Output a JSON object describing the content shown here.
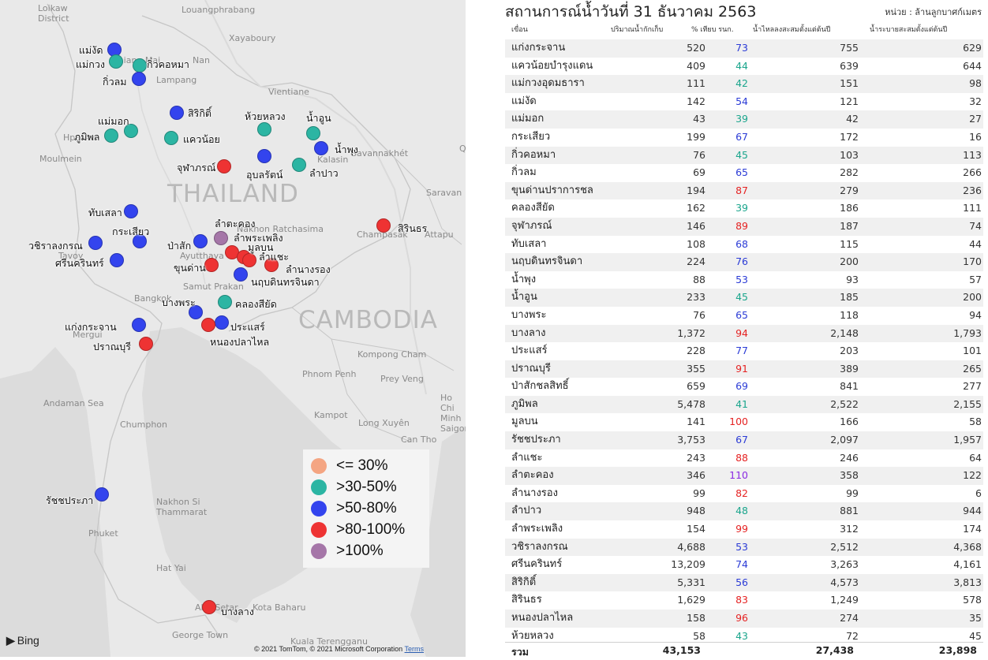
{
  "map": {
    "country_thailand": "THAILAND",
    "country_cambodia": "CAMBODIA",
    "place_labels": [
      "Loikaw District",
      "Louangphrabang",
      "Xayaboury",
      "Vientiane",
      "Hpa-An",
      "Moulmein",
      "Savannakhét",
      "Saravan",
      "Champasak",
      "Attapu",
      "Nakhon Ratchasima",
      "Ayutthaya",
      "Samut Prakan",
      "Bangkok",
      "Mergui",
      "Kompong Cham",
      "Phnom Penh",
      "Prey Veng",
      "Ho Chi Minh Saigon",
      "Kampot",
      "Long Xuyên",
      "Can Tho",
      "Andaman Sea",
      "Chumphon",
      "Nakhon Si Thammarat",
      "Phuket",
      "Hat Yai",
      "Alor Setar",
      "Kota Baharu",
      "George Town",
      "Kuala Terengganu",
      "Tavoy",
      "Chiang Mai",
      "Lampang",
      "Nan",
      "Kalasin",
      "Qui"
    ],
    "dam_labels": [
      "แม่งัด",
      "แม่กวง",
      "กิ่วคอหมา",
      "กิ่วลม",
      "สิริกิติ์",
      "ห้วยหลวง",
      "น้ำอูน",
      "แม่มอก",
      "ภูมิพล",
      "แควน้อย",
      "น้ำพุง",
      "จุฬาภรณ์",
      "อุบลรัตน์",
      "ลำปาว",
      "ทับเสลา",
      "ลำตะคอง",
      "สิรินธร",
      "กระเสียว",
      "วชิราลงกรณ",
      "ป่าสัก",
      "ลำพระเพลิง",
      "มูลบน",
      "ลำแชะ",
      "ศรีนครินทร์",
      "ขุนด่าน",
      "ลำนางรอง",
      "นฤบดินทรจินดา",
      "บางพระ",
      "คลองสียัด",
      "แก่งกระจาน",
      "ประแสร์",
      "หนองปลาไหล",
      "ปราณบุรี",
      "รัชชประภา",
      "บางลาง"
    ],
    "legend": [
      "<= 30%",
      ">30-50%",
      ">50-80%",
      ">80-100%",
      ">100%"
    ],
    "legend_colors": [
      "#f4a582",
      "#2cb5a3",
      "#3344ee",
      "#ee3333",
      "#a576a8"
    ],
    "attribution_logo": "Bing",
    "attribution_text": "© 2021 TomTom, © 2021 Microsoft Corporation",
    "attribution_terms": "Terms"
  },
  "table": {
    "title": "สถานการณ์น้ำวันที่ 31 ธันวาคม 2563",
    "unit": "หน่วย : ล้านลูกบาศก์เมตร",
    "columns": [
      "เขื่อน",
      "ปริมาณน้ำกักเก็บ",
      "% เทียบ รนก.",
      "น้ำไหลลงสะสมตั้งแต่ต้นปี",
      "น้ำระบายสะสมตั้งแต่ต้นปี"
    ],
    "rows": [
      {
        "name": "แก่งกระจาน",
        "storage": "520",
        "pct": "73",
        "pct_color": "#2b3bd6",
        "inflow": "755",
        "outflow": "629"
      },
      {
        "name": "แควน้อยบำรุงแดน",
        "storage": "409",
        "pct": "44",
        "pct_color": "#1aa58c",
        "inflow": "639",
        "outflow": "644"
      },
      {
        "name": "แม่กวงอุดมธารา",
        "storage": "111",
        "pct": "42",
        "pct_color": "#1aa58c",
        "inflow": "151",
        "outflow": "98"
      },
      {
        "name": "แม่งัด",
        "storage": "142",
        "pct": "54",
        "pct_color": "#2b3bd6",
        "inflow": "121",
        "outflow": "32"
      },
      {
        "name": "แม่มอก",
        "storage": "43",
        "pct": "39",
        "pct_color": "#1aa58c",
        "inflow": "42",
        "outflow": "27"
      },
      {
        "name": "กระเสียว",
        "storage": "199",
        "pct": "67",
        "pct_color": "#2b3bd6",
        "inflow": "172",
        "outflow": "16"
      },
      {
        "name": "กิ่วคอหมา",
        "storage": "76",
        "pct": "45",
        "pct_color": "#1aa58c",
        "inflow": "103",
        "outflow": "113"
      },
      {
        "name": "กิ่วลม",
        "storage": "69",
        "pct": "65",
        "pct_color": "#2b3bd6",
        "inflow": "282",
        "outflow": "266"
      },
      {
        "name": "ขุนด่านปราการชล",
        "storage": "194",
        "pct": "87",
        "pct_color": "#e52222",
        "inflow": "279",
        "outflow": "236"
      },
      {
        "name": "คลองสียัด",
        "storage": "162",
        "pct": "39",
        "pct_color": "#1aa58c",
        "inflow": "186",
        "outflow": "111"
      },
      {
        "name": "จุฬาภรณ์",
        "storage": "146",
        "pct": "89",
        "pct_color": "#e52222",
        "inflow": "187",
        "outflow": "74"
      },
      {
        "name": "ทับเสลา",
        "storage": "108",
        "pct": "68",
        "pct_color": "#2b3bd6",
        "inflow": "115",
        "outflow": "44"
      },
      {
        "name": "นฤบดินทรจินดา",
        "storage": "224",
        "pct": "76",
        "pct_color": "#2b3bd6",
        "inflow": "200",
        "outflow": "170"
      },
      {
        "name": "น้ำพุง",
        "storage": "88",
        "pct": "53",
        "pct_color": "#2b3bd6",
        "inflow": "93",
        "outflow": "57"
      },
      {
        "name": "น้ำอูน",
        "storage": "233",
        "pct": "45",
        "pct_color": "#1aa58c",
        "inflow": "185",
        "outflow": "200"
      },
      {
        "name": "บางพระ",
        "storage": "76",
        "pct": "65",
        "pct_color": "#2b3bd6",
        "inflow": "118",
        "outflow": "94"
      },
      {
        "name": "บางลาง",
        "storage": "1,372",
        "pct": "94",
        "pct_color": "#e52222",
        "inflow": "2,148",
        "outflow": "1,793"
      },
      {
        "name": "ประแสร์",
        "storage": "228",
        "pct": "77",
        "pct_color": "#2b3bd6",
        "inflow": "203",
        "outflow": "101"
      },
      {
        "name": "ปราณบุรี",
        "storage": "355",
        "pct": "91",
        "pct_color": "#e52222",
        "inflow": "389",
        "outflow": "265"
      },
      {
        "name": "ป่าสักชลสิทธิ์",
        "storage": "659",
        "pct": "69",
        "pct_color": "#2b3bd6",
        "inflow": "841",
        "outflow": "277"
      },
      {
        "name": "ภูมิพล",
        "storage": "5,478",
        "pct": "41",
        "pct_color": "#1aa58c",
        "inflow": "2,522",
        "outflow": "2,155"
      },
      {
        "name": "มูลบน",
        "storage": "141",
        "pct": "100",
        "pct_color": "#e52222",
        "inflow": "166",
        "outflow": "58"
      },
      {
        "name": "รัชชประภา",
        "storage": "3,753",
        "pct": "67",
        "pct_color": "#2b3bd6",
        "inflow": "2,097",
        "outflow": "1,957"
      },
      {
        "name": "ลำแชะ",
        "storage": "243",
        "pct": "88",
        "pct_color": "#e52222",
        "inflow": "246",
        "outflow": "64"
      },
      {
        "name": "ลำตะคอง",
        "storage": "346",
        "pct": "110",
        "pct_color": "#8a2be2",
        "inflow": "358",
        "outflow": "122"
      },
      {
        "name": "ลำนางรอง",
        "storage": "99",
        "pct": "82",
        "pct_color": "#e52222",
        "inflow": "99",
        "outflow": "6"
      },
      {
        "name": "ลำปาว",
        "storage": "948",
        "pct": "48",
        "pct_color": "#1aa58c",
        "inflow": "881",
        "outflow": "944"
      },
      {
        "name": "ลำพระเพลิง",
        "storage": "154",
        "pct": "99",
        "pct_color": "#e52222",
        "inflow": "312",
        "outflow": "174"
      },
      {
        "name": "วชิราลงกรณ",
        "storage": "4,688",
        "pct": "53",
        "pct_color": "#2b3bd6",
        "inflow": "2,512",
        "outflow": "4,368"
      },
      {
        "name": "ศรีนครินทร์",
        "storage": "13,209",
        "pct": "74",
        "pct_color": "#2b3bd6",
        "inflow": "3,263",
        "outflow": "4,161"
      },
      {
        "name": "สิริกิติ์",
        "storage": "5,331",
        "pct": "56",
        "pct_color": "#2b3bd6",
        "inflow": "4,573",
        "outflow": "3,813"
      },
      {
        "name": "สิรินธร",
        "storage": "1,629",
        "pct": "83",
        "pct_color": "#e52222",
        "inflow": "1,249",
        "outflow": "578"
      },
      {
        "name": "หนองปลาไหล",
        "storage": "158",
        "pct": "96",
        "pct_color": "#e52222",
        "inflow": "274",
        "outflow": "35"
      },
      {
        "name": "ห้วยหลวง",
        "storage": "58",
        "pct": "43",
        "pct_color": "#1aa58c",
        "inflow": "72",
        "outflow": "45"
      }
    ],
    "total": {
      "label": "รวม",
      "storage": "43,153",
      "inflow": "27,438",
      "outflow": "23,898"
    }
  }
}
